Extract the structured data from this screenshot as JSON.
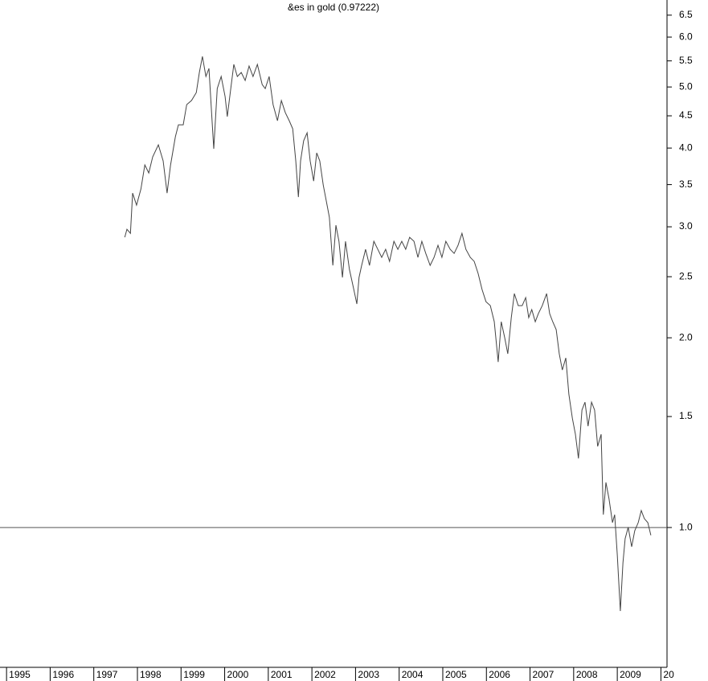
{
  "chart_data": {
    "type": "line",
    "title": "&es in gold (0.97222)",
    "x": [
      1997.71,
      1997.76,
      1997.84,
      1997.89,
      1997.98,
      1998.08,
      1998.17,
      1998.26,
      1998.35,
      1998.48,
      1998.59,
      1998.68,
      1998.76,
      1998.87,
      1998.94,
      1999.05,
      1999.13,
      1999.24,
      1999.35,
      1999.42,
      1999.49,
      1999.57,
      1999.64,
      1999.7,
      1999.75,
      1999.83,
      1999.92,
      2000.01,
      2000.06,
      2000.14,
      2000.21,
      2000.29,
      2000.38,
      2000.47,
      2000.56,
      2000.65,
      2000.75,
      2000.86,
      2000.93,
      2001.02,
      2001.11,
      2001.21,
      2001.3,
      2001.39,
      2001.48,
      2001.56,
      2001.63,
      2001.69,
      2001.74,
      2001.81,
      2001.89,
      2001.96,
      2002.04,
      2002.11,
      2002.18,
      2002.26,
      2002.33,
      2002.4,
      2002.48,
      2002.55,
      2002.62,
      2002.7,
      2002.77,
      2002.86,
      2002.96,
      2003.03,
      2003.08,
      2003.14,
      2003.23,
      2003.32,
      2003.42,
      2003.51,
      2003.6,
      2003.69,
      2003.78,
      2003.88,
      2003.97,
      2004.06,
      2004.15,
      2004.24,
      2004.34,
      2004.43,
      2004.52,
      2004.61,
      2004.71,
      2004.8,
      2004.89,
      2004.98,
      2005.07,
      2005.17,
      2005.26,
      2005.35,
      2005.44,
      2005.53,
      2005.63,
      2005.72,
      2005.81,
      2005.9,
      2005.99,
      2006.09,
      2006.18,
      2006.27,
      2006.34,
      2006.42,
      2006.49,
      2006.57,
      2006.64,
      2006.73,
      2006.82,
      2006.9,
      2006.97,
      2007.04,
      2007.12,
      2007.19,
      2007.28,
      2007.38,
      2007.45,
      2007.52,
      2007.6,
      2007.67,
      2007.74,
      2007.82,
      2007.89,
      2007.97,
      2008.04,
      2008.11,
      2008.19,
      2008.26,
      2008.33,
      2008.41,
      2008.48,
      2008.55,
      2008.63,
      2008.68,
      2008.74,
      2008.81,
      2008.89,
      2008.94,
      2009.0,
      2009.07,
      2009.13,
      2009.18,
      2009.25,
      2009.33,
      2009.4,
      2009.48,
      2009.55,
      2009.62,
      2009.7,
      2009.77
    ],
    "values": [
      2.887,
      2.973,
      2.929,
      3.393,
      3.247,
      3.443,
      3.761,
      3.652,
      3.873,
      4.047,
      3.817,
      3.393,
      3.761,
      4.168,
      4.355,
      4.355,
      4.688,
      4.758,
      4.899,
      5.272,
      5.59,
      5.195,
      5.35,
      4.553,
      3.989,
      4.971,
      5.195,
      4.829,
      4.486,
      4.971,
      5.43,
      5.195,
      5.272,
      5.12,
      5.398,
      5.195,
      5.43,
      5.045,
      4.971,
      5.195,
      4.688,
      4.42,
      4.758,
      4.553,
      4.42,
      4.292,
      3.817,
      3.344,
      3.817,
      4.107,
      4.229,
      3.817,
      3.545,
      3.93,
      3.817,
      3.494,
      3.296,
      3.107,
      2.605,
      3.017,
      2.845,
      2.493,
      2.845,
      2.567,
      2.386,
      2.263,
      2.493,
      2.605,
      2.763,
      2.605,
      2.845,
      2.763,
      2.683,
      2.763,
      2.644,
      2.845,
      2.763,
      2.845,
      2.763,
      2.887,
      2.845,
      2.683,
      2.845,
      2.722,
      2.605,
      2.683,
      2.804,
      2.683,
      2.845,
      2.763,
      2.722,
      2.804,
      2.929,
      2.763,
      2.683,
      2.644,
      2.53,
      2.386,
      2.282,
      2.249,
      2.121,
      1.831,
      2.121,
      2.0,
      1.886,
      2.153,
      2.35,
      2.249,
      2.249,
      2.316,
      2.153,
      2.217,
      2.121,
      2.184,
      2.249,
      2.35,
      2.184,
      2.121,
      2.06,
      1.886,
      1.778,
      1.858,
      1.628,
      1.491,
      1.406,
      1.287,
      1.536,
      1.581,
      1.448,
      1.581,
      1.536,
      1.345,
      1.406,
      1.048,
      1.179,
      1.111,
      1.018,
      1.048,
      0.905,
      0.737,
      0.879,
      0.96,
      1.001,
      0.932,
      0.988,
      1.018,
      1.064,
      1.033,
      1.018,
      0.972
    ],
    "color": "#444444",
    "xlim": [
      1994.85,
      2010.14
    ],
    "xticks": [
      1995,
      1996,
      1997,
      1998,
      1999,
      2000,
      2001,
      2002,
      2003,
      2004,
      2005,
      2006,
      2007,
      2008,
      2009,
      {
        "value": 2010,
        "label": "20"
      }
    ],
    "ylim": [
      0.6,
      6.87
    ],
    "log_scale": true,
    "yticks": [
      {
        "value": 1,
        "label": "1.0"
      },
      1.5,
      {
        "value": 2,
        "label": "2.0"
      },
      2.5,
      {
        "value": 3,
        "label": "3.0"
      },
      3.5,
      {
        "value": 4,
        "label": "4.0"
      },
      4.5,
      {
        "value": 5,
        "label": "5.0"
      },
      5.5,
      {
        "value": 6,
        "label": "6.0"
      },
      6.5
    ],
    "reference_line": 1,
    "reference_color": "#555555"
  }
}
